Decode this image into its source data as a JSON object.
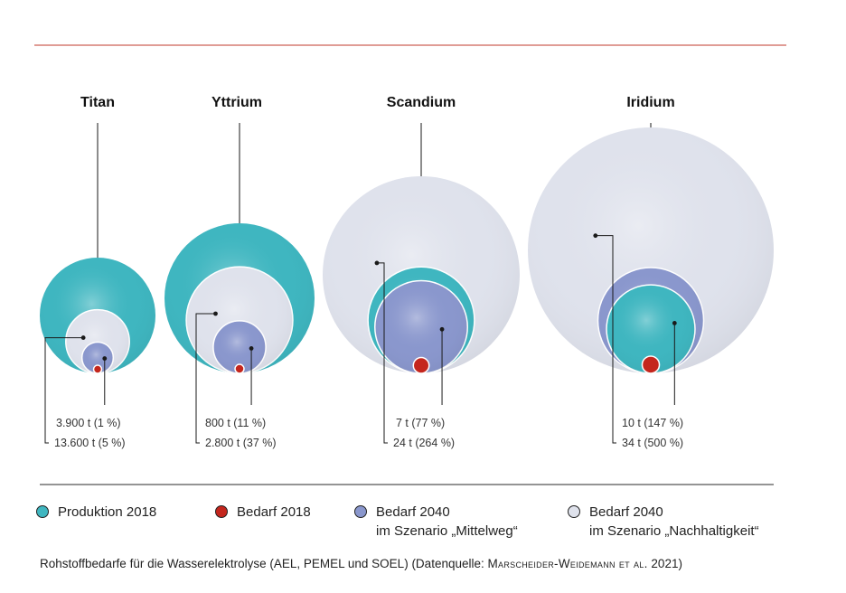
{
  "colors": {
    "produktion_2018": "#3fb6c0",
    "bedarf_2018": "#c4261d",
    "bedarf_2040_mittelweg": "#8a97cd",
    "bedarf_2040_nachhaltigkeit": "#dfe2ec",
    "top_rule": "#c0392b"
  },
  "chart_data": {
    "type": "bubble",
    "metrics": [
      "Produktion 2018",
      "Bedarf 2018",
      "Bedarf 2040 Mittelweg",
      "Bedarf 2040 Nachhaltigkeit"
    ],
    "series": [
      {
        "name": "Titan",
        "bedarf_2040_mittelweg": "3.900 t (1 %)",
        "bedarf_2040_nachhaltigkeit": "13.600 t (5 %)",
        "mittelweg_t": 3900,
        "mittelweg_pct": 1,
        "nachhaltigkeit_t": 13600,
        "nachhaltigkeit_pct": 5,
        "rel_produktion": 1.0,
        "rel_nachhaltigkeit": 0.55,
        "rel_mittelweg": 0.27,
        "rel_bedarf2018": 0.07,
        "order": [
          "produktion",
          "nachhaltigkeit",
          "mittelweg",
          "bedarf2018"
        ]
      },
      {
        "name": "Yttrium",
        "bedarf_2040_mittelweg": "800 t (11 %)",
        "bedarf_2040_nachhaltigkeit": "2.800 t (37 %)",
        "mittelweg_t": 800,
        "mittelweg_pct": 11,
        "nachhaltigkeit_t": 2800,
        "nachhaltigkeit_pct": 37,
        "rel_produktion": 1.0,
        "rel_nachhaltigkeit": 0.71,
        "rel_mittelweg": 0.35,
        "rel_bedarf2018": 0.06,
        "order": [
          "produktion",
          "nachhaltigkeit",
          "mittelweg",
          "bedarf2018"
        ]
      },
      {
        "name": "Scandium",
        "bedarf_2040_mittelweg": "7 t (77 %)",
        "bedarf_2040_nachhaltigkeit": "24 t (264 %)",
        "mittelweg_t": 7,
        "mittelweg_pct": 77,
        "nachhaltigkeit_t": 24,
        "nachhaltigkeit_pct": 264,
        "rel_nachhaltigkeit": 1.0,
        "rel_produktion": 0.54,
        "rel_mittelweg": 0.47,
        "rel_bedarf2018": 0.08,
        "order": [
          "nachhaltigkeit",
          "produktion",
          "mittelweg",
          "bedarf2018"
        ]
      },
      {
        "name": "Iridium",
        "bedarf_2040_mittelweg": "10 t (147 %)",
        "bedarf_2040_nachhaltigkeit": "34 t (500 %)",
        "mittelweg_t": 10,
        "mittelweg_pct": 147,
        "nachhaltigkeit_t": 34,
        "nachhaltigkeit_pct": 500,
        "rel_nachhaltigkeit": 1.0,
        "rel_mittelweg": 0.43,
        "rel_produktion": 0.36,
        "rel_bedarf2018": 0.07,
        "order": [
          "nachhaltigkeit",
          "mittelweg",
          "produktion",
          "bedarf2018"
        ]
      }
    ]
  },
  "legend": {
    "produktion": "Produktion 2018",
    "bedarf2018": "Bedarf 2018",
    "mittelweg_line1": "Bedarf 2040",
    "mittelweg_line2": "im Szenario „Mittelweg“",
    "nachhaltigkeit_line1": "Bedarf 2040",
    "nachhaltigkeit_line2": "im Szenario „Nachhaltigkeit“"
  },
  "caption": {
    "main": "Rohstoffbedarfe für die Wasserelektrolyse (AEL, PEMEL und SOEL) (Datenquelle: ",
    "source": "Marscheider-Weidemann et al.",
    "year": " 2021)"
  }
}
